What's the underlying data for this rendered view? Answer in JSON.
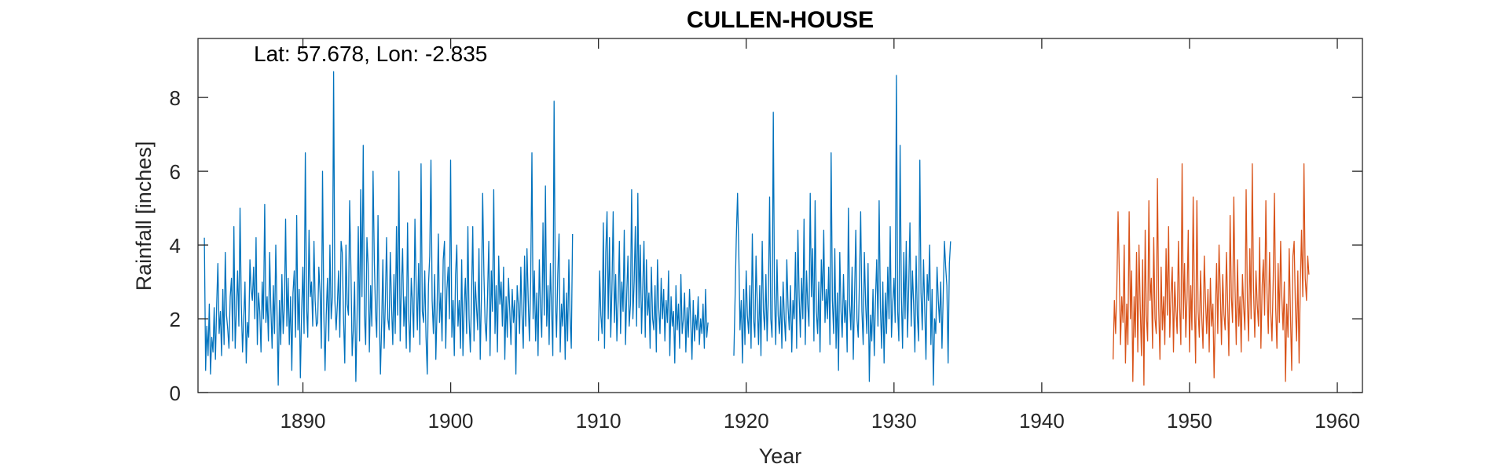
{
  "chart_data": {
    "type": "line",
    "title": "CULLEN-HOUSE",
    "xlabel": "Year",
    "ylabel": "Rainfall [inches]",
    "annotation": "Lat: 57.678, Lon: -2.835",
    "xlim": [
      1882.9,
      1961.7
    ],
    "ylim": [
      0,
      9.6
    ],
    "xticks": [
      1890,
      1900,
      1910,
      1920,
      1930,
      1940,
      1950,
      1960
    ],
    "xtick_labels": [
      "1890",
      "1900",
      "1910",
      "1920",
      "1930",
      "1940",
      "1950",
      "1960"
    ],
    "yticks": [
      0,
      2,
      4,
      6,
      8
    ],
    "ytick_labels": [
      "0",
      "2",
      "4",
      "6",
      "8"
    ],
    "grid": false,
    "legend": "none",
    "series": [
      {
        "color": "#0072bd",
        "x_start": 1883.33,
        "x_step": 0.0833333,
        "values": [
          4.2,
          0.6,
          1.8,
          1.0,
          2.4,
          0.5,
          1.5,
          1.1,
          2.3,
          0.9,
          2.4,
          3.5,
          1.6,
          2.2,
          1.0,
          2.8,
          1.3,
          3.8,
          2.1,
          1.7,
          1.2,
          2.6,
          3.1,
          1.4,
          4.5,
          1.2,
          2.2,
          3.3,
          1.8,
          5.0,
          2.4,
          1.1,
          2.0,
          3.0,
          0.8,
          1.9,
          1.5,
          3.6,
          2.8,
          2.5,
          3.4,
          2.0,
          4.2,
          1.3,
          2.7,
          2.2,
          1.1,
          3.0,
          2.0,
          5.1,
          1.9,
          2.6,
          1.4,
          3.8,
          2.3,
          1.2,
          2.9,
          1.6,
          4.0,
          2.1,
          0.2,
          2.5,
          1.3,
          3.2,
          1.6,
          2.4,
          4.7,
          1.8,
          3.1,
          1.3,
          2.6,
          0.6,
          2.7,
          3.3,
          1.5,
          4.8,
          1.7,
          2.8,
          0.4,
          2.2,
          3.4,
          1.6,
          6.5,
          2.3,
          1.5,
          4.4,
          2.6,
          3.0,
          1.8,
          4.1,
          2.5,
          1.8,
          1.9,
          3.4,
          2.7,
          1.2,
          6.0,
          2.2,
          0.6,
          2.1,
          3.1,
          1.4,
          4.0,
          2.0,
          2.6,
          8.7,
          2.5,
          1.7,
          2.4,
          3.3,
          1.5,
          4.1,
          3.8,
          2.0,
          0.8,
          4.0,
          2.4,
          2.1,
          5.2,
          3.4,
          1.0,
          1.7,
          3.0,
          0.3,
          2.0,
          4.5,
          1.4,
          5.5,
          2.6,
          6.7,
          2.1,
          1.3,
          4.2,
          3.5,
          1.1,
          2.9,
          1.8,
          6.0,
          3.6,
          2.2,
          1.5,
          4.8,
          2.3,
          0.5,
          1.9,
          3.6,
          1.2,
          2.5,
          4.2,
          2.0,
          1.7,
          3.8,
          2.4,
          1.3,
          3.2,
          1.6,
          4.5,
          2.1,
          6.0,
          1.4,
          2.8,
          3.9,
          1.8,
          2.6,
          1.2,
          4.6,
          2.0,
          1.1,
          3.1,
          2.4,
          1.5,
          4.7,
          2.8,
          1.7,
          3.5,
          1.3,
          6.2,
          2.2,
          1.9,
          3.3,
          1.5,
          0.5,
          2.9,
          3.7,
          6.3,
          2.5,
          1.6,
          3.2,
          0.9,
          2.3,
          4.3,
          1.9,
          2.7,
          1.4,
          3.6,
          4.1,
          1.2,
          2.8,
          3.4,
          2.0,
          6.3,
          1.5,
          2.5,
          1.0,
          3.2,
          4.0,
          1.8,
          2.5,
          1.2,
          3.6,
          1.0,
          2.4,
          3.1,
          1.6,
          4.5,
          2.0,
          1.1,
          2.7,
          4.5,
          1.4,
          3.0,
          2.3,
          1.7,
          3.9,
          0.9,
          2.6,
          5.4,
          3.2,
          1.9,
          1.4,
          2.7,
          4.1,
          1.0,
          3.3,
          2.2,
          5.5,
          1.6,
          2.9,
          1.1,
          3.7,
          2.4,
          3.0,
          1.8,
          3.4,
          0.9,
          2.6,
          1.5,
          3.1,
          2.2,
          1.3,
          2.8,
          1.9,
          2.5,
          0.5,
          2.9,
          2.4,
          1.6,
          3.4,
          2.1,
          1.2,
          3.7,
          1.8,
          3.9,
          2.5,
          1.4,
          3.0,
          6.5,
          2.0,
          3.3,
          1.4,
          2.7,
          1.0,
          3.6,
          2.3,
          1.5,
          4.6,
          2.1,
          5.6,
          1.8,
          2.9,
          1.3,
          3.5,
          2.2,
          1.0,
          7.9,
          2.6,
          1.5,
          3.2,
          4.3,
          1.1,
          2.4,
          1.8,
          3.1,
          0.9,
          2.7,
          1.4,
          3.6,
          2.0,
          1.2,
          4.3,
          null,
          null,
          null,
          null,
          null,
          null,
          null,
          null,
          null,
          null,
          null,
          null,
          null,
          null,
          null,
          null,
          null,
          null,
          null,
          null,
          1.4,
          3.3,
          2.1,
          1.6,
          4.6,
          1.2,
          3.8,
          4.9,
          2.0,
          4.2,
          1.5,
          2.8,
          4.9,
          1.9,
          3.2,
          1.4,
          2.5,
          4.1,
          1.6,
          3.0,
          2.2,
          4.4,
          1.3,
          2.7,
          3.7,
          1.8,
          2.4,
          5.5,
          2.0,
          3.0,
          4.5,
          1.8,
          5.4,
          2.3,
          4.0,
          1.6,
          2.8,
          4.1,
          1.5,
          3.6,
          2.1,
          2.7,
          1.2,
          3.4,
          2.0,
          1.7,
          2.9,
          1.1,
          3.6,
          2.3,
          1.6,
          3.1,
          2.0,
          2.8,
          1.4,
          2.5,
          1.9,
          3.3,
          1.0,
          2.6,
          1.8,
          2.2,
          0.8,
          2.9,
          1.7,
          2.4,
          1.2,
          3.2,
          1.6,
          2.0,
          2.7,
          1.1,
          2.3,
          1.5,
          2.8,
          1.9,
          0.9,
          2.5,
          1.4,
          2.1,
          1.7,
          2.6,
          1.3,
          2.0,
          1.6,
          2.4,
          1.2,
          2.8,
          1.5,
          1.9,
          null,
          null,
          null,
          null,
          null,
          null,
          null,
          null,
          null,
          null,
          null,
          null,
          null,
          null,
          null,
          null,
          null,
          null,
          null,
          null,
          1.0,
          2.6,
          4.2,
          5.4,
          3.8,
          1.7,
          2.5,
          0.8,
          2.8,
          1.3,
          3.3,
          2.1,
          1.6,
          2.9,
          1.2,
          4.3,
          2.0,
          1.5,
          3.7,
          2.4,
          1.3,
          2.9,
          1.0,
          4.1,
          2.2,
          1.7,
          3.2,
          1.4,
          2.6,
          5.3,
          2.0,
          1.5,
          7.6,
          2.7,
          1.3,
          3.6,
          2.1,
          1.6,
          2.6,
          1.2,
          3.0,
          2.0,
          1.4,
          3.6,
          2.3,
          1.7,
          2.9,
          1.1,
          2.5,
          2.0,
          3.8,
          1.2,
          4.4,
          2.6,
          1.5,
          3.1,
          2.0,
          4.7,
          1.3,
          3.3,
          2.4,
          1.8,
          5.4,
          2.6,
          3.9,
          1.4,
          5.2,
          2.2,
          1.6,
          3.0,
          1.1,
          3.6,
          2.5,
          4.4,
          1.9,
          2.8,
          2.0,
          3.4,
          1.3,
          6.5,
          2.5,
          1.6,
          3.9,
          1.2,
          2.7,
          0.6,
          3.8,
          2.2,
          1.5,
          3.2,
          1.9,
          2.5,
          1.1,
          5.0,
          2.4,
          1.7,
          3.4,
          0.9,
          2.6,
          4.4,
          2.0,
          1.5,
          3.1,
          4.9,
          2.2,
          1.3,
          3.8,
          2.4,
          1.6,
          3.5,
          0.3,
          2.1,
          1.4,
          2.8,
          1.0,
          2.5,
          3.6,
          1.8,
          5.2,
          2.3,
          1.2,
          3.0,
          0.8,
          2.7,
          1.6,
          3.4,
          2.0,
          4.5,
          1.5,
          2.4,
          3.1,
          1.9,
          8.6,
          2.2,
          1.4,
          6.7,
          2.6,
          1.2,
          3.8,
          2.0,
          4.1,
          1.5,
          2.9,
          4.6,
          1.8,
          3.3,
          2.4,
          1.1,
          3.7,
          2.1,
          1.4,
          6.3,
          2.7,
          1.7,
          3.6,
          2.3,
          0.9,
          3.2,
          2.5,
          4.0,
          1.3,
          2.8,
          0.2,
          2.0,
          1.6,
          3.4,
          2.5,
          1.9,
          3.0,
          1.2,
          2.6,
          4.1,
          3.4,
          2.9,
          0.8,
          3.5,
          4.1
        ]
      },
      {
        "color": "#d95319",
        "x_start": 1944.83,
        "x_step": 0.0833333,
        "values": [
          0.9,
          2.5,
          1.6,
          2.8,
          4.9,
          3.2,
          1.3,
          2.6,
          1.9,
          4.0,
          0.8,
          2.4,
          1.3,
          4.9,
          2.0,
          3.3,
          0.3,
          2.6,
          1.5,
          3.8,
          1.1,
          4.0,
          2.3,
          1.0,
          3.6,
          0.2,
          4.4,
          2.1,
          1.4,
          5.2,
          2.5,
          3.1,
          1.2,
          4.2,
          2.0,
          1.6,
          5.8,
          2.3,
          0.9,
          3.4,
          1.7,
          2.6,
          1.3,
          3.9,
          2.1,
          4.5,
          1.5,
          2.7,
          3.4,
          1.1,
          3.0,
          2.2,
          1.6,
          4.1,
          2.3,
          1.3,
          6.2,
          2.0,
          3.5,
          1.5,
          2.6,
          4.4,
          1.1,
          2.9,
          1.7,
          5.3,
          2.4,
          0.8,
          5.2,
          2.2,
          1.5,
          3.3,
          2.0,
          1.2,
          3.7,
          2.5,
          1.6,
          2.8,
          1.1,
          3.1,
          1.8,
          2.4,
          0.4,
          2.2,
          3.5,
          1.6,
          4.0,
          2.7,
          1.3,
          3.2,
          2.1,
          1.7,
          3.8,
          2.4,
          1.0,
          4.8,
          2.6,
          1.9,
          5.3,
          2.8,
          1.3,
          3.6,
          1.8,
          2.6,
          1.1,
          3.2,
          2.3,
          1.7,
          5.5,
          2.5,
          1.4,
          3.9,
          2.0,
          6.2,
          2.8,
          1.5,
          3.3,
          2.4,
          1.8,
          4.2,
          1.2,
          2.9,
          3.6,
          2.1,
          5.2,
          2.7,
          1.6,
          3.8,
          2.2,
          1.4,
          3.1,
          5.4,
          2.3,
          1.2,
          3.5,
          1.9,
          4.1,
          2.6,
          1.7,
          3.0,
          0.3,
          2.4,
          1.5,
          3.9,
          2.1,
          0.6,
          3.7,
          4.1,
          2.3,
          1.4,
          3.3,
          0.8,
          2.9,
          4.4,
          2.6,
          6.2,
          3.1,
          2.5,
          3.7,
          3.2
        ]
      }
    ]
  }
}
